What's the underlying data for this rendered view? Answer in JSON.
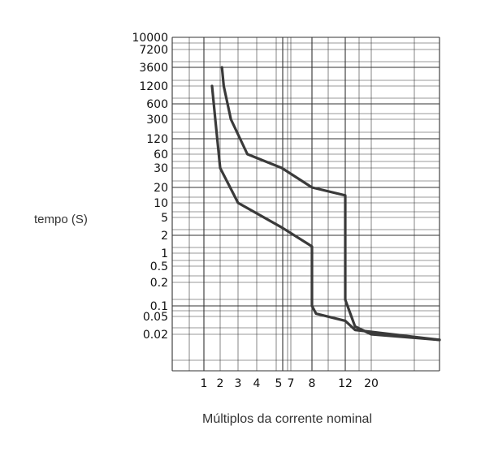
{
  "chart_data": {
    "type": "line",
    "xlabel": "Múltiplos da corrente nominal",
    "ylabel": "tempo (S)",
    "y_tick_labels": [
      "10000",
      "7200",
      "3600",
      "1200",
      "600",
      "300",
      "120",
      "60",
      "30",
      "20",
      "10",
      "5",
      "2",
      "1",
      "0.5",
      "0.2",
      "0.1",
      "0.05",
      "0.02"
    ],
    "x_tick_labels": [
      "1",
      "2",
      "3",
      "4",
      "5",
      "7",
      "8",
      "12",
      "20"
    ],
    "grid": true,
    "series": [
      {
        "curve": "upper",
        "points": [
          [
            2.1,
            3600
          ],
          [
            2.2,
            1200
          ],
          [
            2.6,
            300
          ],
          [
            3.5,
            60
          ],
          [
            5.5,
            30
          ],
          [
            8,
            20
          ],
          [
            12,
            14
          ],
          [
            12,
            0.12
          ],
          [
            15,
            0.03
          ],
          [
            20,
            0.02
          ],
          [
            25,
            0.015
          ]
        ]
      },
      {
        "curve": "lower",
        "points": [
          [
            1.5,
            1200
          ],
          [
            1.7,
            300
          ],
          [
            2,
            30
          ],
          [
            3,
            10
          ],
          [
            5.5,
            3
          ],
          [
            8,
            1.3
          ],
          [
            8,
            0.1
          ],
          [
            8.5,
            0.06
          ],
          [
            12,
            0.04
          ],
          [
            15,
            0.025
          ],
          [
            25,
            0.015
          ]
        ]
      }
    ]
  }
}
